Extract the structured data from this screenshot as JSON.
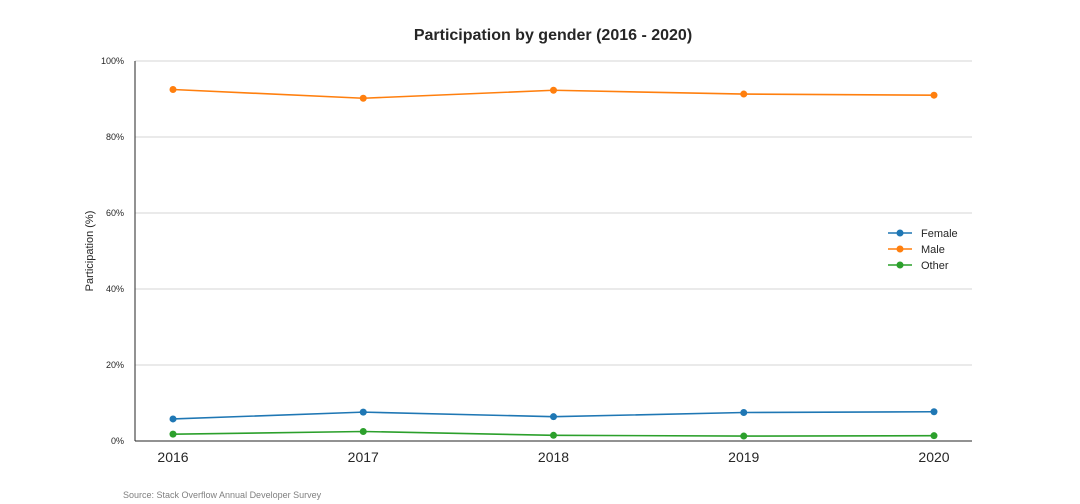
{
  "chart_data": {
    "type": "line",
    "title": "Participation by gender (2016 - 2020)",
    "xlabel": "",
    "ylabel": "Participation (%)",
    "x": [
      "2016",
      "2017",
      "2018",
      "2019",
      "2020"
    ],
    "ylim": [
      0,
      100
    ],
    "yticks": [
      0,
      20,
      40,
      60,
      80,
      100
    ],
    "ytick_labels": [
      "0%",
      "20%",
      "40%",
      "60%",
      "80%",
      "100%"
    ],
    "grid": "horizontal",
    "legend_position": "right",
    "series": [
      {
        "name": "Female",
        "color": "#1f77b4",
        "values": [
          5.8,
          7.6,
          6.4,
          7.5,
          7.7
        ]
      },
      {
        "name": "Male",
        "color": "#ff7f0e",
        "values": [
          92.5,
          90.2,
          92.3,
          91.3,
          91.0
        ]
      },
      {
        "name": "Other",
        "color": "#2ca02c",
        "values": [
          1.8,
          2.5,
          1.5,
          1.3,
          1.4
        ]
      }
    ],
    "source": "Source: Stack Overflow Annual Developer Survey"
  }
}
